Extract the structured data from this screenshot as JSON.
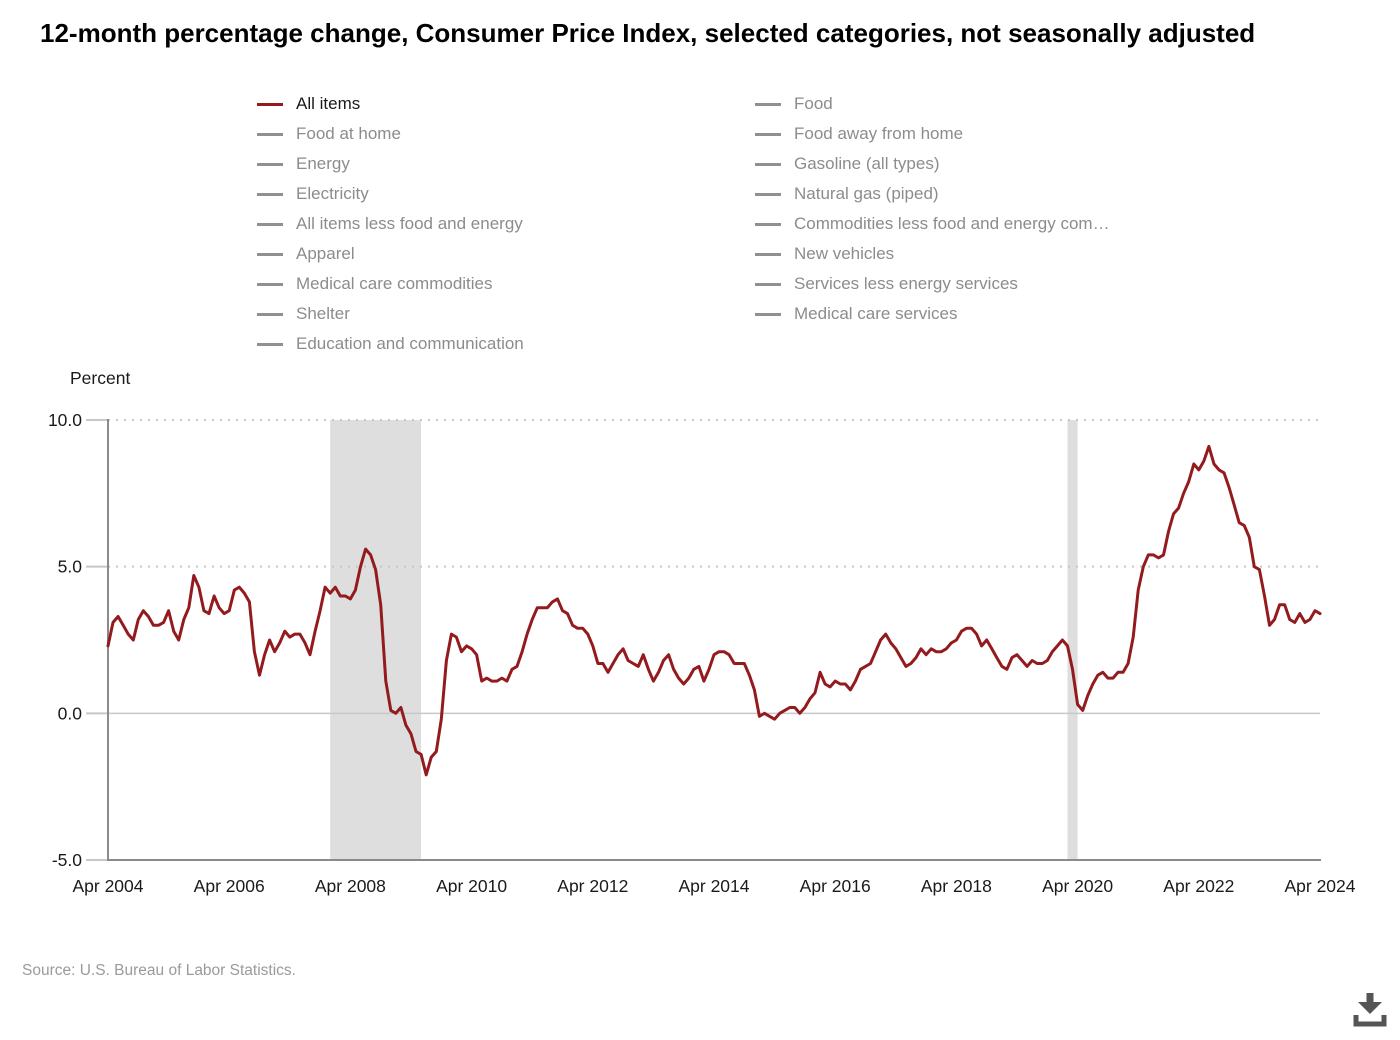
{
  "title": "12-month percentage change, Consumer Price Index, selected categories, not seasonally adjusted",
  "source": {
    "text": "Source: U.S. Bureau of Labor Statistics."
  },
  "download_button": {
    "icon": "download-arrow"
  },
  "legend": {
    "active_text_color": "#1a1a1a",
    "inactive_text_color": "#8c8c8c",
    "inactive_swatch_color": "#909090",
    "columns": [
      {
        "items": [
          {
            "label": "All items",
            "active": true,
            "color": "#931b1e"
          },
          {
            "label": "Food at home",
            "active": false
          },
          {
            "label": "Energy",
            "active": false
          },
          {
            "label": "Electricity",
            "active": false
          },
          {
            "label": "All items less food and energy",
            "active": false
          },
          {
            "label": "Apparel",
            "active": false
          },
          {
            "label": "Medical care commodities",
            "active": false
          },
          {
            "label": "Shelter",
            "active": false
          },
          {
            "label": "Education and communication",
            "active": false
          }
        ]
      },
      {
        "items": [
          {
            "label": "Food",
            "active": false
          },
          {
            "label": "Food away from home",
            "active": false
          },
          {
            "label": "Gasoline (all types)",
            "active": false
          },
          {
            "label": "Natural gas (piped)",
            "active": false
          },
          {
            "label": "Commodities less food and energy com…",
            "active": false
          },
          {
            "label": "New vehicles",
            "active": false
          },
          {
            "label": "Services less energy services",
            "active": false
          },
          {
            "label": "Medical care services",
            "active": false
          }
        ]
      }
    ]
  },
  "chart_data": {
    "type": "line",
    "title": "12-month percentage change, Consumer Price Index, selected categories, not seasonally adjusted",
    "xlabel": "",
    "ylabel": "Percent",
    "ylim": [
      -5.0,
      10.0
    ],
    "grid": "dotted horizontal lines at 10.0 and 5.0, solid line at 0.0",
    "legend_position": "top",
    "yticks": [
      {
        "value": 10.0,
        "label": "10.0",
        "style": "dotted"
      },
      {
        "value": 5.0,
        "label": "5.0",
        "style": "dotted"
      },
      {
        "value": 0.0,
        "label": "0.0",
        "style": "solid"
      },
      {
        "value": -5.0,
        "label": "-5.0",
        "style": "axis"
      }
    ],
    "x_months_total": 240,
    "xticks": [
      {
        "month": 0,
        "label": "Apr 2004"
      },
      {
        "month": 24,
        "label": "Apr 2006"
      },
      {
        "month": 48,
        "label": "Apr 2008"
      },
      {
        "month": 72,
        "label": "Apr 2010"
      },
      {
        "month": 96,
        "label": "Apr 2012"
      },
      {
        "month": 120,
        "label": "Apr 2014"
      },
      {
        "month": 144,
        "label": "Apr 2016"
      },
      {
        "month": 168,
        "label": "Apr 2018"
      },
      {
        "month": 192,
        "label": "Apr 2020"
      },
      {
        "month": 216,
        "label": "Apr 2022"
      },
      {
        "month": 240,
        "label": "Apr 2024"
      }
    ],
    "recession_bands": [
      {
        "start_month": 44,
        "end_month": 62,
        "color": "#dedede"
      },
      {
        "start_month": 190,
        "end_month": 192,
        "color": "#dedede"
      }
    ],
    "series": [
      {
        "name": "All items",
        "color": "#931b1e",
        "start": "Apr 2004",
        "frequency": "monthly",
        "values": [
          2.3,
          3.1,
          3.3,
          3.0,
          2.7,
          2.5,
          3.2,
          3.5,
          3.3,
          3.0,
          3.0,
          3.1,
          3.5,
          2.8,
          2.5,
          3.2,
          3.6,
          4.7,
          4.3,
          3.5,
          3.4,
          4.0,
          3.6,
          3.4,
          3.5,
          4.2,
          4.3,
          4.1,
          3.8,
          2.1,
          1.3,
          2.0,
          2.5,
          2.1,
          2.4,
          2.8,
          2.6,
          2.7,
          2.7,
          2.4,
          2.0,
          2.8,
          3.5,
          4.3,
          4.1,
          4.3,
          4.0,
          4.0,
          3.9,
          4.2,
          5.0,
          5.6,
          5.4,
          4.9,
          3.7,
          1.1,
          0.1,
          0.0,
          0.2,
          -0.4,
          -0.7,
          -1.3,
          -1.4,
          -2.1,
          -1.5,
          -1.3,
          -0.2,
          1.8,
          2.7,
          2.6,
          2.1,
          2.3,
          2.2,
          2.0,
          1.1,
          1.2,
          1.1,
          1.1,
          1.2,
          1.1,
          1.5,
          1.6,
          2.1,
          2.7,
          3.2,
          3.6,
          3.6,
          3.6,
          3.8,
          3.9,
          3.5,
          3.4,
          3.0,
          2.9,
          2.9,
          2.7,
          2.3,
          1.7,
          1.7,
          1.4,
          1.7,
          2.0,
          2.2,
          1.8,
          1.7,
          1.6,
          2.0,
          1.5,
          1.1,
          1.4,
          1.8,
          2.0,
          1.5,
          1.2,
          1.0,
          1.2,
          1.5,
          1.6,
          1.1,
          1.5,
          2.0,
          2.1,
          2.1,
          2.0,
          1.7,
          1.7,
          1.7,
          1.3,
          0.8,
          -0.1,
          0.0,
          -0.1,
          -0.2,
          0.0,
          0.1,
          0.2,
          0.2,
          0.0,
          0.2,
          0.5,
          0.7,
          1.4,
          1.0,
          0.9,
          1.1,
          1.0,
          1.0,
          0.8,
          1.1,
          1.5,
          1.6,
          1.7,
          2.1,
          2.5,
          2.7,
          2.4,
          2.2,
          1.9,
          1.6,
          1.7,
          1.9,
          2.2,
          2.0,
          2.2,
          2.1,
          2.1,
          2.2,
          2.4,
          2.5,
          2.8,
          2.9,
          2.9,
          2.7,
          2.3,
          2.5,
          2.2,
          1.9,
          1.6,
          1.5,
          1.9,
          2.0,
          1.8,
          1.6,
          1.8,
          1.7,
          1.7,
          1.8,
          2.1,
          2.3,
          2.5,
          2.3,
          1.5,
          0.3,
          0.1,
          0.6,
          1.0,
          1.3,
          1.4,
          1.2,
          1.2,
          1.4,
          1.4,
          1.7,
          2.6,
          4.2,
          5.0,
          5.4,
          5.4,
          5.3,
          5.4,
          6.2,
          6.8,
          7.0,
          7.5,
          7.9,
          8.5,
          8.3,
          8.6,
          9.1,
          8.5,
          8.3,
          8.2,
          7.7,
          7.1,
          6.5,
          6.4,
          6.0,
          5.0,
          4.9,
          4.0,
          3.0,
          3.2,
          3.7,
          3.7,
          3.2,
          3.1,
          3.4,
          3.1,
          3.2,
          3.5,
          3.4
        ]
      }
    ]
  }
}
